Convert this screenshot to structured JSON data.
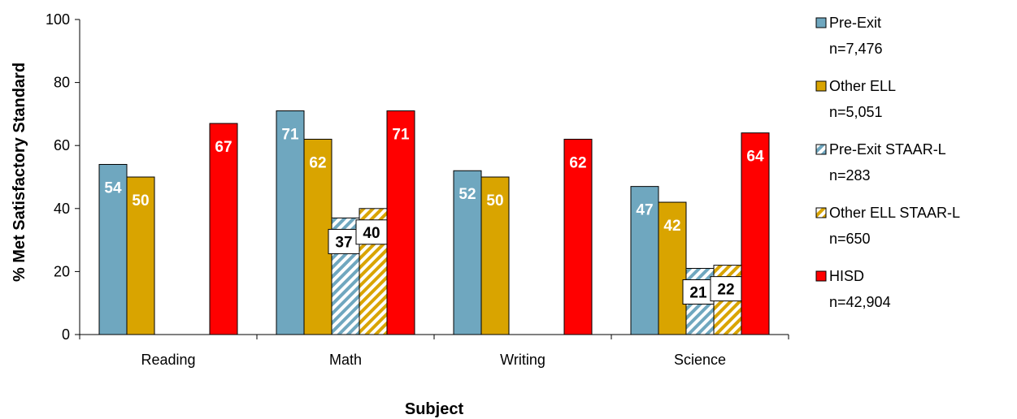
{
  "chart_data": {
    "type": "bar",
    "title": "",
    "xlabel": "Subject",
    "ylabel": "% Met Satisfactory Standard",
    "ylim": [
      0,
      100
    ],
    "yticks": [
      0,
      20,
      40,
      60,
      80,
      100
    ],
    "grid": false,
    "legend_position": "right",
    "categories": [
      "Reading",
      "Math",
      "Writing",
      "Science"
    ],
    "series": [
      {
        "name": "Pre-Exit",
        "n_label": "n=7,476",
        "color": "#6fa7bf",
        "pattern": "solid",
        "label_style": "inside-white",
        "values": [
          54,
          71,
          52,
          47
        ]
      },
      {
        "name": "Other ELL",
        "n_label": "n=5,051",
        "color": "#d9a400",
        "pattern": "solid",
        "label_style": "inside-white",
        "values": [
          50,
          62,
          50,
          42
        ]
      },
      {
        "name": "Pre-Exit STAAR-L",
        "n_label": "n=283",
        "color": "#6fa7bf",
        "pattern": "hatched",
        "label_style": "boxed",
        "values": [
          null,
          37,
          null,
          21
        ]
      },
      {
        "name": "Other ELL STAAR-L",
        "n_label": "n=650",
        "color": "#d9a400",
        "pattern": "hatched",
        "label_style": "boxed",
        "values": [
          null,
          40,
          null,
          22
        ]
      },
      {
        "name": "HISD",
        "n_label": "n=42,904",
        "color": "#ff0000",
        "pattern": "solid",
        "label_style": "inside-white",
        "values": [
          67,
          71,
          62,
          64
        ]
      }
    ]
  }
}
